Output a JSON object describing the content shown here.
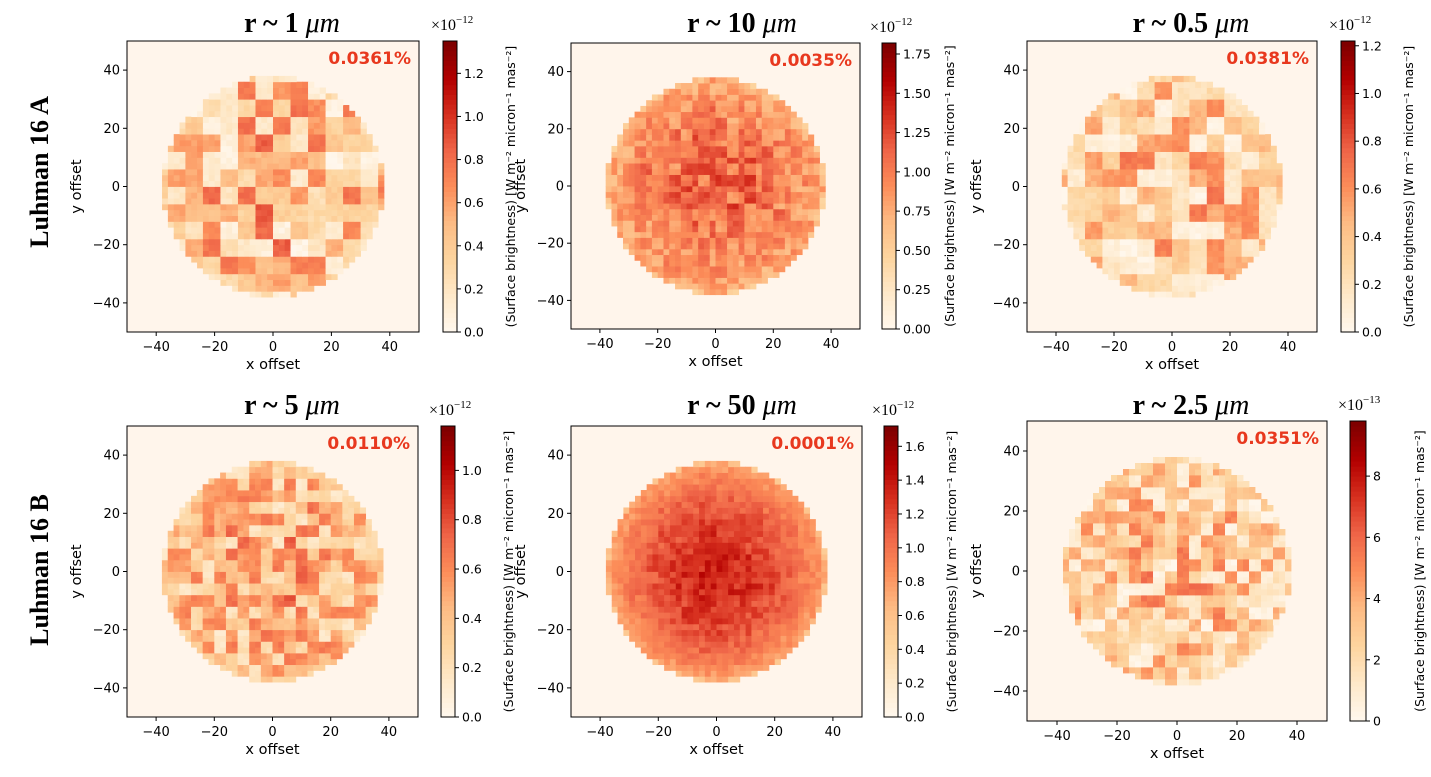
{
  "figure": {
    "row_labels": [
      "Luhman 16 A",
      "Luhman 16 B"
    ]
  },
  "chart_data": [
    {
      "type": "heatmap",
      "row": 0,
      "col": 0,
      "title": "r ~ 1 μm",
      "title_prefix": "r ~ 1 ",
      "title_unit": "μm",
      "annotation": "0.0361%",
      "xlabel": "x offset",
      "ylabel": "y offset",
      "xlim": [
        -50,
        50
      ],
      "ylim": [
        -50,
        50
      ],
      "xticks": [
        -40,
        -20,
        0,
        20,
        40
      ],
      "yticks": [
        -40,
        -20,
        0,
        20,
        40
      ],
      "disk_radius": 38,
      "colormap": "OrRd-like",
      "colorbar": {
        "label": "(Surface brightness) [W m⁻² micron⁻¹ mas⁻²]",
        "multiplier": "×10",
        "exponent": "−12",
        "min": 0,
        "max": 1.35,
        "ticks": [
          "0.0",
          "0.2",
          "0.4",
          "0.6",
          "0.8",
          "1.0",
          "1.2"
        ],
        "tick_values": [
          0,
          0.2,
          0.4,
          0.6,
          0.8,
          1.0,
          1.2
        ]
      },
      "pattern": {
        "base": 0.35,
        "variation": 0.55,
        "limb": 0.2,
        "cell": 3,
        "seed": 11
      }
    },
    {
      "type": "heatmap",
      "row": 0,
      "col": 1,
      "title": "r ~ 10 μm",
      "title_prefix": "r ~ 10 ",
      "title_unit": "μm",
      "annotation": "0.0035%",
      "xlabel": "x offset",
      "ylabel": "y offset",
      "xlim": [
        -50,
        50
      ],
      "ylim": [
        -50,
        50
      ],
      "xticks": [
        -40,
        -20,
        0,
        20,
        40
      ],
      "yticks": [
        -40,
        -20,
        0,
        20,
        40
      ],
      "disk_radius": 38,
      "colormap": "OrRd-like",
      "colorbar": {
        "label": "(Surface brightness) [W m⁻² micron⁻¹ mas⁻²]",
        "multiplier": "×10",
        "exponent": "−12",
        "min": 0,
        "max": 1.82,
        "ticks": [
          "0.00",
          "0.25",
          "0.50",
          "0.75",
          "1.00",
          "1.25",
          "1.50",
          "1.75"
        ],
        "tick_values": [
          0,
          0.25,
          0.5,
          0.75,
          1.0,
          1.25,
          1.5,
          1.75
        ]
      },
      "pattern": {
        "base": 0.62,
        "variation": 0.25,
        "limb": 0.35,
        "cell": 1.6,
        "seed": 23
      }
    },
    {
      "type": "heatmap",
      "row": 0,
      "col": 2,
      "title": "r ~ 0.5 μm",
      "title_prefix": "r ~ 0.5 ",
      "title_unit": "μm",
      "annotation": "0.0381%",
      "xlabel": "x offset",
      "ylabel": "y offset",
      "xlim": [
        -50,
        50
      ],
      "ylim": [
        -50,
        50
      ],
      "xticks": [
        -40,
        -20,
        0,
        20,
        40
      ],
      "yticks": [
        -40,
        -20,
        0,
        20,
        40
      ],
      "disk_radius": 38,
      "colormap": "OrRd-like",
      "colorbar": {
        "label": "(Surface brightness) [W m⁻² micron⁻¹ mas⁻²]",
        "multiplier": "×10",
        "exponent": "−12",
        "min": 0,
        "max": 1.22,
        "ticks": [
          "0.0",
          "0.2",
          "0.4",
          "0.6",
          "0.8",
          "1.0",
          "1.2"
        ],
        "tick_values": [
          0,
          0.2,
          0.4,
          0.6,
          0.8,
          1.0,
          1.2
        ]
      },
      "pattern": {
        "base": 0.3,
        "variation": 0.5,
        "limb": 0.2,
        "cell": 3,
        "seed": 37
      }
    },
    {
      "type": "heatmap",
      "row": 1,
      "col": 0,
      "title": "r ~ 5 μm",
      "title_prefix": "r ~ 5 ",
      "title_unit": "μm",
      "annotation": "0.0110%",
      "xlabel": "x offset",
      "ylabel": "y offset",
      "xlim": [
        -50,
        50
      ],
      "ylim": [
        -50,
        50
      ],
      "xticks": [
        -40,
        -20,
        0,
        20,
        40
      ],
      "yticks": [
        -40,
        -20,
        0,
        20,
        40
      ],
      "disk_radius": 38,
      "colormap": "OrRd-like",
      "colorbar": {
        "label": "(Surface brightness) [W m⁻² micron⁻¹ mas⁻²]",
        "multiplier": "×10",
        "exponent": "−12",
        "min": 0,
        "max": 1.18,
        "ticks": [
          "0.0",
          "0.2",
          "0.4",
          "0.6",
          "0.8",
          "1.0"
        ],
        "tick_values": [
          0,
          0.2,
          0.4,
          0.6,
          0.8,
          1.0
        ]
      },
      "pattern": {
        "base": 0.4,
        "variation": 0.45,
        "limb": 0.25,
        "cell": 2,
        "seed": 51
      }
    },
    {
      "type": "heatmap",
      "row": 1,
      "col": 1,
      "title": "r ~ 50 μm",
      "title_prefix": "r ~ 50 ",
      "title_unit": "μm",
      "annotation": "0.0001%",
      "xlabel": "x offset",
      "ylabel": "y offset",
      "xlim": [
        -50,
        50
      ],
      "ylim": [
        -50,
        50
      ],
      "xticks": [
        -40,
        -20,
        0,
        20,
        40
      ],
      "yticks": [
        -40,
        -20,
        0,
        20,
        40
      ],
      "disk_radius": 38,
      "colormap": "OrRd-like",
      "colorbar": {
        "label": "(Surface brightness) [W m⁻² micron⁻¹ mas⁻²]",
        "multiplier": "×10",
        "exponent": "−12",
        "min": 0,
        "max": 1.72,
        "ticks": [
          "0.0",
          "0.2",
          "0.4",
          "0.6",
          "0.8",
          "1.0",
          "1.2",
          "1.4",
          "1.6"
        ],
        "tick_values": [
          0,
          0.2,
          0.4,
          0.6,
          0.8,
          1.0,
          1.2,
          1.4,
          1.6
        ]
      },
      "pattern": {
        "base": 0.78,
        "variation": 0.12,
        "limb": 0.45,
        "cell": 1.2,
        "seed": 67
      }
    },
    {
      "type": "heatmap",
      "row": 1,
      "col": 2,
      "title": "r ~ 2.5 μm",
      "title_prefix": "r ~ 2.5 ",
      "title_unit": "μm",
      "annotation": "0.0351%",
      "xlabel": "x offset",
      "ylabel": "y offset",
      "xlim": [
        -50,
        50
      ],
      "ylim": [
        -50,
        50
      ],
      "xticks": [
        -40,
        -20,
        0,
        20,
        40
      ],
      "yticks": [
        -40,
        -20,
        0,
        20,
        40
      ],
      "disk_radius": 38,
      "colormap": "OrRd-like",
      "colorbar": {
        "label": "(Surface brightness) [W m⁻² micron⁻¹ mas⁻²]",
        "multiplier": "×10",
        "exponent": "−13",
        "min": 0,
        "max": 9.8,
        "ticks": [
          "0",
          "2",
          "4",
          "6",
          "8"
        ],
        "tick_values": [
          0,
          2,
          4,
          6,
          8
        ]
      },
      "pattern": {
        "base": 0.3,
        "variation": 0.5,
        "limb": 0.2,
        "cell": 2,
        "seed": 83
      }
    }
  ],
  "colors": {
    "annotation": "#e8381e",
    "background": "#fff5eb",
    "axis": "#000000",
    "cmap_stops": [
      "#fff7ec",
      "#fee8c8",
      "#fdd49e",
      "#fdbb84",
      "#fc8d59",
      "#ef6548",
      "#d7301f",
      "#b30000",
      "#7f0000"
    ]
  }
}
